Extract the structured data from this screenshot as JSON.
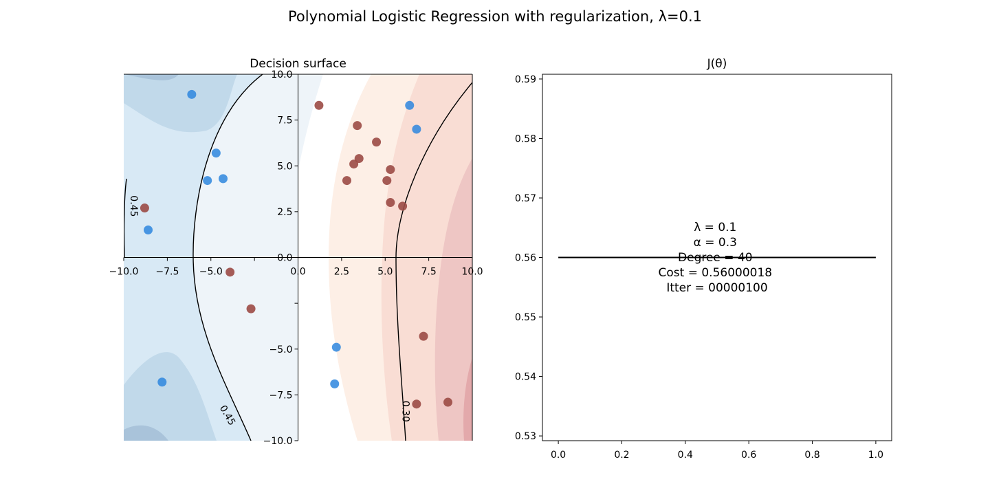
{
  "suptitle": "Polynomial Logistic Regression with regularization, λ=0.1",
  "colors": {
    "class0_point": "#2e86de",
    "class1_point": "#9b4a45",
    "blue_fill_light": "#d6e8f4",
    "blue_fill_mid": "#c1d9ea",
    "blue_fill_dark": "#a9c3da",
    "pale_fill": "#eef4f9",
    "peach_fill": "#fdefe6",
    "salmon_fill": "#f9ddd4",
    "rose_fill": "#eec6c4",
    "contour_line": "#000000",
    "cost_line": "#000000"
  },
  "chart_data": [
    {
      "type": "scatter",
      "subtype": "decision-surface-contour",
      "title": "Decision surface",
      "xlabel": "",
      "ylabel": "",
      "xlim": [
        -10,
        10
      ],
      "ylim": [
        -10,
        10
      ],
      "spines": "centered",
      "grid": false,
      "x_ticks": [
        "−10.0",
        "−7.5",
        "−5.0",
        "",
        "0.0",
        "2.5",
        "5.0",
        "7.5",
        "10.0"
      ],
      "x_tick_values": [
        -10,
        -7.5,
        -5,
        -2.5,
        0,
        2.5,
        5,
        7.5,
        10
      ],
      "y_ticks": [
        "−10.0",
        "−7.5",
        "−5.0",
        "",
        "0.0",
        "2.5",
        "5.0",
        "7.5",
        "10.0"
      ],
      "y_tick_values": [
        -10,
        -7.5,
        -5,
        -2.5,
        0,
        2.5,
        5,
        7.5,
        10
      ],
      "contour_labels": [
        {
          "text": "0.45",
          "x": -9.6,
          "y": 2.8,
          "rotate": 90
        },
        {
          "text": "0.45",
          "x": -4.2,
          "y": -8.7,
          "rotate": 60
        },
        {
          "text": "0.30",
          "x": 6.0,
          "y": -8.4,
          "rotate": 90
        }
      ],
      "class0_points": [
        {
          "x": -6.1,
          "y": 8.9
        },
        {
          "x": -4.7,
          "y": 5.7
        },
        {
          "x": -5.2,
          "y": 4.2
        },
        {
          "x": -4.3,
          "y": 4.3
        },
        {
          "x": -8.6,
          "y": 1.5
        },
        {
          "x": -7.8,
          "y": -6.8
        },
        {
          "x": 2.2,
          "y": -4.9
        },
        {
          "x": 2.1,
          "y": -6.9
        },
        {
          "x": 6.4,
          "y": 8.3
        },
        {
          "x": 6.8,
          "y": 7.0
        }
      ],
      "class1_points": [
        {
          "x": -8.8,
          "y": 2.7
        },
        {
          "x": -3.9,
          "y": -0.8
        },
        {
          "x": -2.7,
          "y": -2.8
        },
        {
          "x": 1.2,
          "y": 8.3
        },
        {
          "x": 3.4,
          "y": 7.2
        },
        {
          "x": 4.5,
          "y": 6.3
        },
        {
          "x": 3.5,
          "y": 5.4
        },
        {
          "x": 3.2,
          "y": 5.1
        },
        {
          "x": 5.3,
          "y": 4.8
        },
        {
          "x": 2.8,
          "y": 4.2
        },
        {
          "x": 5.1,
          "y": 4.2
        },
        {
          "x": 5.3,
          "y": 3.0
        },
        {
          "x": 6.0,
          "y": 2.8
        },
        {
          "x": 7.2,
          "y": -4.3
        },
        {
          "x": 6.8,
          "y": -8.0
        },
        {
          "x": 8.6,
          "y": -7.9
        }
      ]
    },
    {
      "type": "line",
      "title": "J(θ)",
      "xlabel": "",
      "ylabel": "",
      "xlim": [
        -0.05,
        1.05
      ],
      "ylim": [
        0.5292,
        0.5908
      ],
      "grid": false,
      "x_ticks": [
        "0.0",
        "0.2",
        "0.4",
        "0.6",
        "0.8",
        "1.0"
      ],
      "x_tick_values": [
        0,
        0.2,
        0.4,
        0.6,
        0.8,
        1.0
      ],
      "y_ticks": [
        "0.53",
        "0.54",
        "0.55",
        "0.56",
        "0.57",
        "0.58",
        "0.59"
      ],
      "y_tick_values": [
        0.53,
        0.54,
        0.55,
        0.56,
        0.57,
        0.58,
        0.59
      ],
      "series": [
        {
          "x": [
            0,
            1
          ],
          "y": [
            0.56,
            0.56
          ]
        }
      ],
      "annotation": {
        "lines": [
          "λ = 0.1",
          "α = 0.3",
          "Degree = 40",
          "Cost = 0.56000018",
          "Itter = 00000100"
        ]
      }
    }
  ]
}
